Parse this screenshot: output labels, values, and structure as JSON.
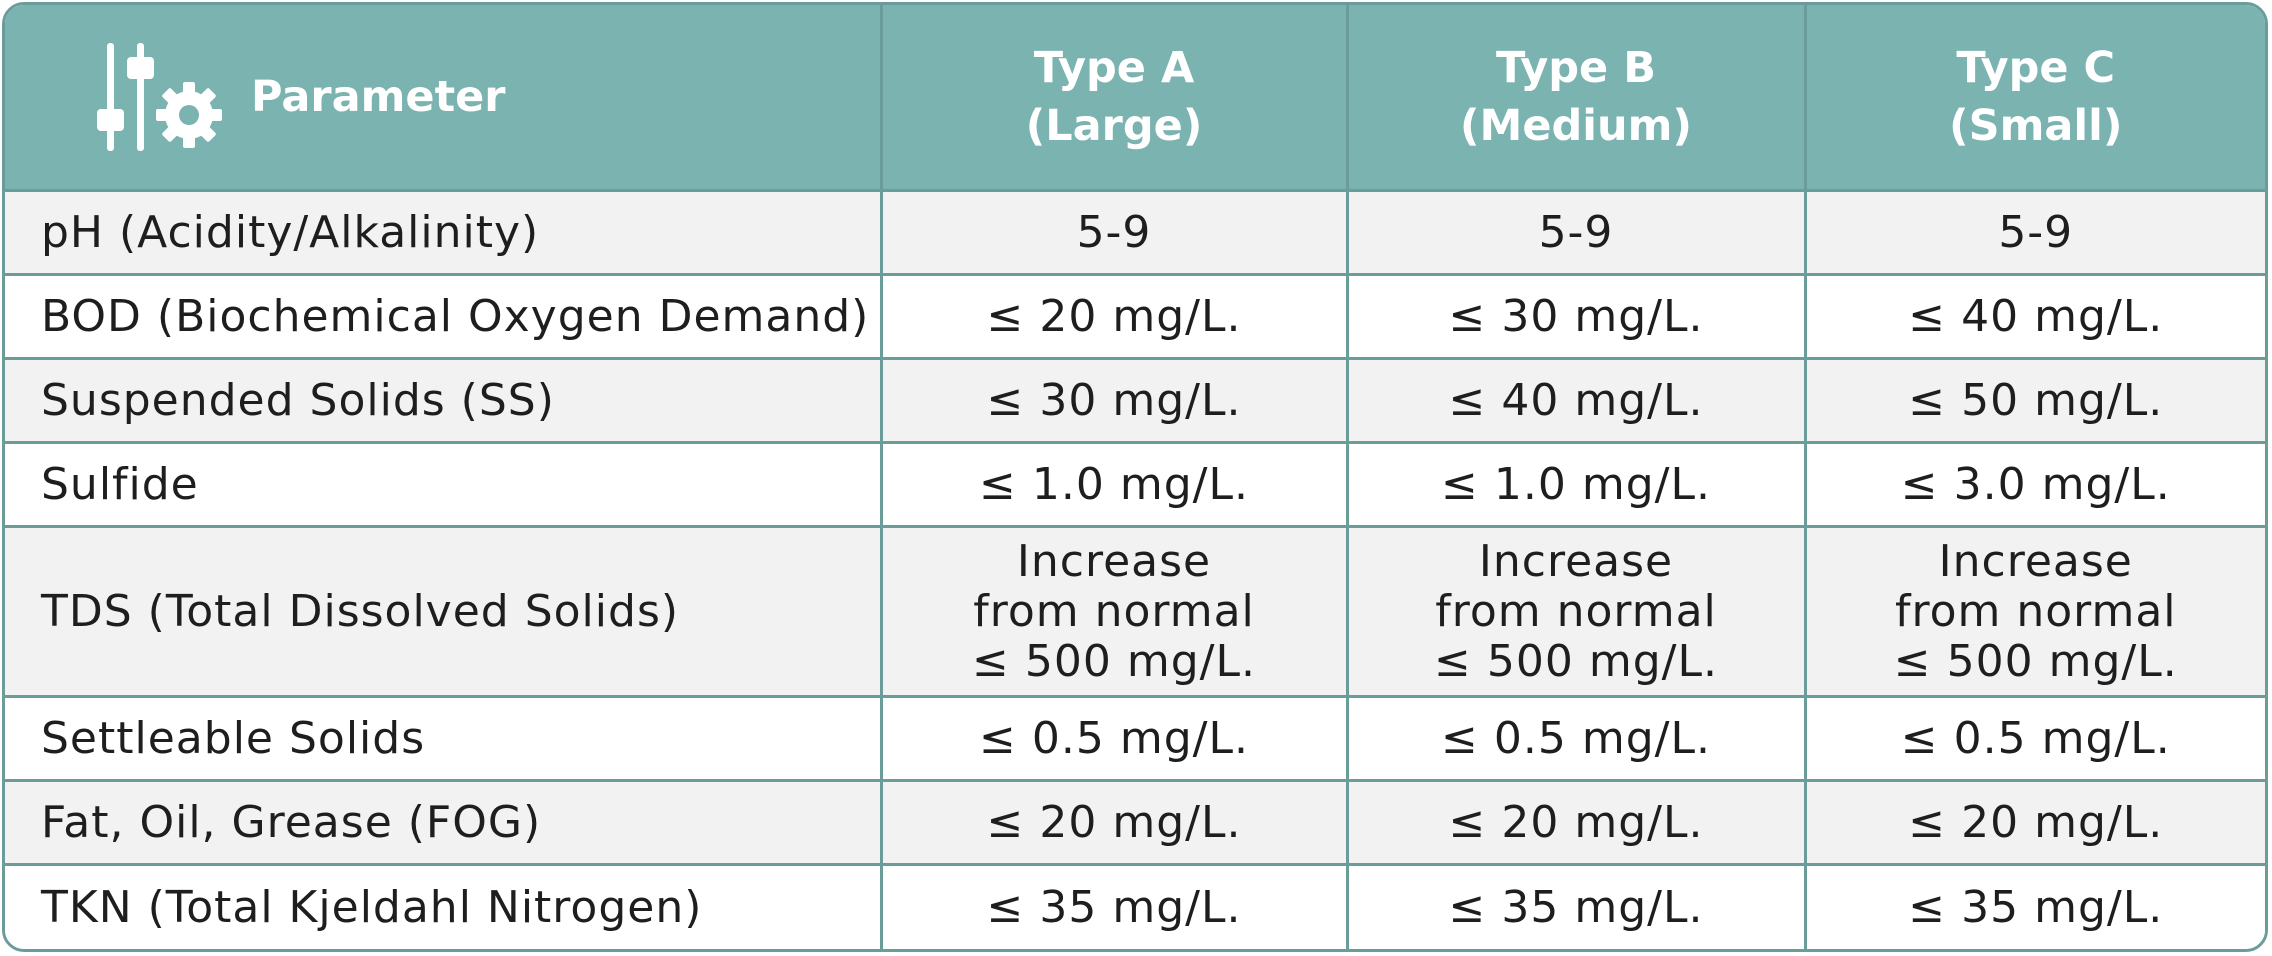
{
  "header": {
    "parameter": "Parameter",
    "type_a": [
      "Type A",
      "(Large)"
    ],
    "type_b": [
      "Type B",
      "(Medium)"
    ],
    "type_c": [
      "Type C",
      "(Small)"
    ],
    "icon": "settings-sliders-gear-icon"
  },
  "rows": [
    {
      "parameter": "pH (Acidity/Alkalinity)",
      "a": "5-9",
      "b": "5-9",
      "c": "5-9"
    },
    {
      "parameter": "BOD (Biochemical Oxygen Demand)",
      "a": "≤ 20 mg/L.",
      "b": "≤ 30 mg/L.",
      "c": "≤ 40 mg/L."
    },
    {
      "parameter": "Suspended Solids (SS)",
      "a": "≤ 30 mg/L.",
      "b": "≤ 40 mg/L.",
      "c": "≤ 50 mg/L."
    },
    {
      "parameter": "Sulfide",
      "a": "≤ 1.0 mg/L.",
      "b": "≤ 1.0 mg/L.",
      "c": "≤ 3.0 mg/L."
    },
    {
      "parameter": "TDS (Total Dissolved Solids)",
      "a": [
        "Increase",
        "from normal",
        "≤ 500 mg/L."
      ],
      "b": [
        "Increase",
        "from normal",
        "≤ 500 mg/L."
      ],
      "c": [
        "Increase",
        "from normal",
        "≤ 500 mg/L."
      ]
    },
    {
      "parameter": "Settleable Solids",
      "a": "≤ 0.5 mg/L.",
      "b": "≤ 0.5 mg/L.",
      "c": "≤ 0.5 mg/L."
    },
    {
      "parameter": "Fat, Oil, Grease (FOG)",
      "a": "≤ 20 mg/L.",
      "b": "≤ 20 mg/L.",
      "c": "≤ 20 mg/L."
    },
    {
      "parameter": "TKN (Total Kjeldahl Nitrogen)",
      "a": "≤ 35 mg/L.",
      "b": "≤ 35 mg/L.",
      "c": "≤ 35 mg/L."
    }
  ],
  "colors": {
    "header_bg": "#7ab3b0",
    "border": "#6a9c9a",
    "row_alt": "#f2f2f2"
  }
}
